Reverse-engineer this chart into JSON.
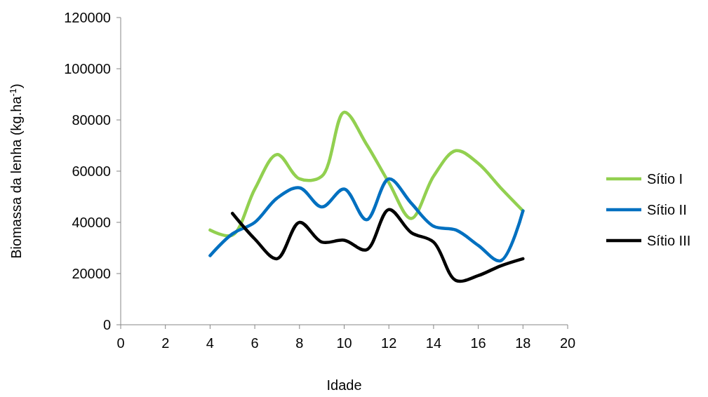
{
  "chart_data": {
    "type": "line",
    "xlabel": "Idade",
    "ylabel": "Biomassa da lenha (kg.ha$^{-1}$)",
    "xlim": [
      0,
      20
    ],
    "xticks": [
      0,
      2,
      4,
      6,
      8,
      10,
      12,
      14,
      16,
      18,
      20
    ],
    "ylim": [
      0,
      120000
    ],
    "yticks": [
      0,
      20000,
      40000,
      60000,
      80000,
      100000,
      120000
    ],
    "grid": false,
    "legend": "right",
    "marker": "none",
    "line_style": "solid",
    "x": [
      4,
      5,
      6,
      7,
      8,
      9,
      10,
      11,
      12,
      13,
      14,
      15,
      16,
      17,
      18
    ],
    "series": [
      {
        "name": "Sítio I",
        "color": "#92d050",
        "values": [
          37000,
          35000,
          53000,
          66500,
          57000,
          58000,
          83000,
          70500,
          55500,
          41500,
          58000,
          68000,
          63000,
          53500,
          44500
        ]
      },
      {
        "name": "Sítio II",
        "color": "#0070c0",
        "values": [
          27000,
          35500,
          40000,
          49500,
          53500,
          46000,
          53000,
          41000,
          57000,
          47500,
          38500,
          37000,
          31000,
          25000,
          44500
        ]
      },
      {
        "name": "Sítio III",
        "color": "#000000",
        "values": [
          null,
          43500,
          33500,
          25800,
          40000,
          32300,
          33000,
          29300,
          45000,
          36000,
          32300,
          17300,
          19200,
          23000,
          25800
        ]
      }
    ]
  }
}
